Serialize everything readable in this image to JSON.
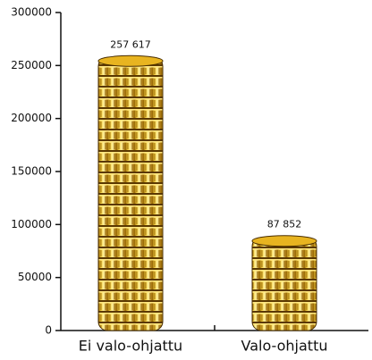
{
  "chart_data": {
    "type": "bar",
    "categories": [
      "Ei valo-ohjattu",
      "Valo-ohjattu"
    ],
    "values": [
      257617,
      87852
    ],
    "value_labels": [
      "257 617",
      "87 852"
    ],
    "color": "#e8b420",
    "ylim": [
      0,
      300000
    ],
    "yticks": [
      0,
      50000,
      100000,
      150000,
      200000,
      250000,
      300000
    ]
  }
}
